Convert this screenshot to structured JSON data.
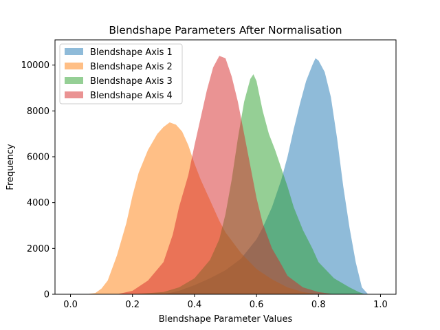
{
  "chart_data": {
    "type": "histogram",
    "title": "Blendshape Parameters After Normalisation",
    "xlabel": "Blendshape Parameter Values",
    "ylabel": "Frequency",
    "xlim": [
      -0.05,
      1.05
    ],
    "ylim": [
      0,
      11100
    ],
    "xticks": [
      0.0,
      0.2,
      0.4,
      0.6,
      0.8,
      1.0
    ],
    "xtick_labels": [
      "0.0",
      "0.2",
      "0.4",
      "0.6",
      "0.8",
      "1.0"
    ],
    "yticks": [
      0,
      2000,
      4000,
      6000,
      8000,
      10000
    ],
    "ytick_labels": [
      "0",
      "2000",
      "4000",
      "6000",
      "8000",
      "10000"
    ],
    "grid": false,
    "legend_position": "top-left",
    "bar_alpha": 0.5,
    "series": [
      {
        "name": "Blendshape Axis 1",
        "color": "#1f77b4",
        "points": [
          [
            0.3,
            0
          ],
          [
            0.35,
            150
          ],
          [
            0.4,
            400
          ],
          [
            0.45,
            700
          ],
          [
            0.5,
            1050
          ],
          [
            0.55,
            1550
          ],
          [
            0.6,
            2400
          ],
          [
            0.62,
            2900
          ],
          [
            0.65,
            3800
          ],
          [
            0.68,
            5000
          ],
          [
            0.7,
            6000
          ],
          [
            0.72,
            7200
          ],
          [
            0.74,
            8300
          ],
          [
            0.76,
            9300
          ],
          [
            0.78,
            10000
          ],
          [
            0.79,
            10300
          ],
          [
            0.8,
            10200
          ],
          [
            0.82,
            9700
          ],
          [
            0.84,
            8600
          ],
          [
            0.86,
            6800
          ],
          [
            0.88,
            4700
          ],
          [
            0.9,
            2900
          ],
          [
            0.92,
            1400
          ],
          [
            0.94,
            300
          ],
          [
            0.96,
            0
          ]
        ]
      },
      {
        "name": "Blendshape Axis 2",
        "color": "#ff7f0e",
        "points": [
          [
            0.05,
            0
          ],
          [
            0.08,
            50
          ],
          [
            0.1,
            250
          ],
          [
            0.12,
            600
          ],
          [
            0.15,
            1700
          ],
          [
            0.18,
            3100
          ],
          [
            0.2,
            4300
          ],
          [
            0.22,
            5300
          ],
          [
            0.25,
            6300
          ],
          [
            0.28,
            7000
          ],
          [
            0.3,
            7300
          ],
          [
            0.32,
            7500
          ],
          [
            0.34,
            7400
          ],
          [
            0.36,
            7100
          ],
          [
            0.38,
            6500
          ],
          [
            0.4,
            5700
          ],
          [
            0.42,
            5000
          ],
          [
            0.45,
            4100
          ],
          [
            0.48,
            3200
          ],
          [
            0.5,
            2700
          ],
          [
            0.55,
            1800
          ],
          [
            0.6,
            1100
          ],
          [
            0.65,
            650
          ],
          [
            0.7,
            300
          ],
          [
            0.75,
            100
          ],
          [
            0.8,
            0
          ]
        ]
      },
      {
        "name": "Blendshape Axis 3",
        "color": "#2ca02c",
        "points": [
          [
            0.2,
            0
          ],
          [
            0.3,
            100
          ],
          [
            0.35,
            300
          ],
          [
            0.4,
            700
          ],
          [
            0.45,
            1500
          ],
          [
            0.48,
            2400
          ],
          [
            0.5,
            3500
          ],
          [
            0.52,
            5000
          ],
          [
            0.54,
            6800
          ],
          [
            0.56,
            8400
          ],
          [
            0.58,
            9400
          ],
          [
            0.59,
            9600
          ],
          [
            0.6,
            9300
          ],
          [
            0.62,
            8000
          ],
          [
            0.64,
            7000
          ],
          [
            0.66,
            6300
          ],
          [
            0.68,
            5500
          ],
          [
            0.7,
            4700
          ],
          [
            0.72,
            3800
          ],
          [
            0.75,
            2800
          ],
          [
            0.78,
            2000
          ],
          [
            0.8,
            1400
          ],
          [
            0.85,
            700
          ],
          [
            0.9,
            300
          ],
          [
            0.93,
            100
          ],
          [
            0.95,
            0
          ]
        ]
      },
      {
        "name": "Blendshape Axis 4",
        "color": "#d62728",
        "points": [
          [
            0.15,
            0
          ],
          [
            0.2,
            150
          ],
          [
            0.25,
            600
          ],
          [
            0.3,
            1400
          ],
          [
            0.33,
            2600
          ],
          [
            0.35,
            3800
          ],
          [
            0.38,
            5200
          ],
          [
            0.4,
            6500
          ],
          [
            0.42,
            7700
          ],
          [
            0.44,
            8900
          ],
          [
            0.46,
            9900
          ],
          [
            0.48,
            10400
          ],
          [
            0.5,
            10300
          ],
          [
            0.52,
            9500
          ],
          [
            0.54,
            8400
          ],
          [
            0.56,
            7000
          ],
          [
            0.58,
            5600
          ],
          [
            0.6,
            4200
          ],
          [
            0.62,
            3100
          ],
          [
            0.65,
            2000
          ],
          [
            0.68,
            1300
          ],
          [
            0.7,
            800
          ],
          [
            0.75,
            300
          ],
          [
            0.8,
            100
          ],
          [
            0.85,
            0
          ]
        ]
      }
    ]
  }
}
